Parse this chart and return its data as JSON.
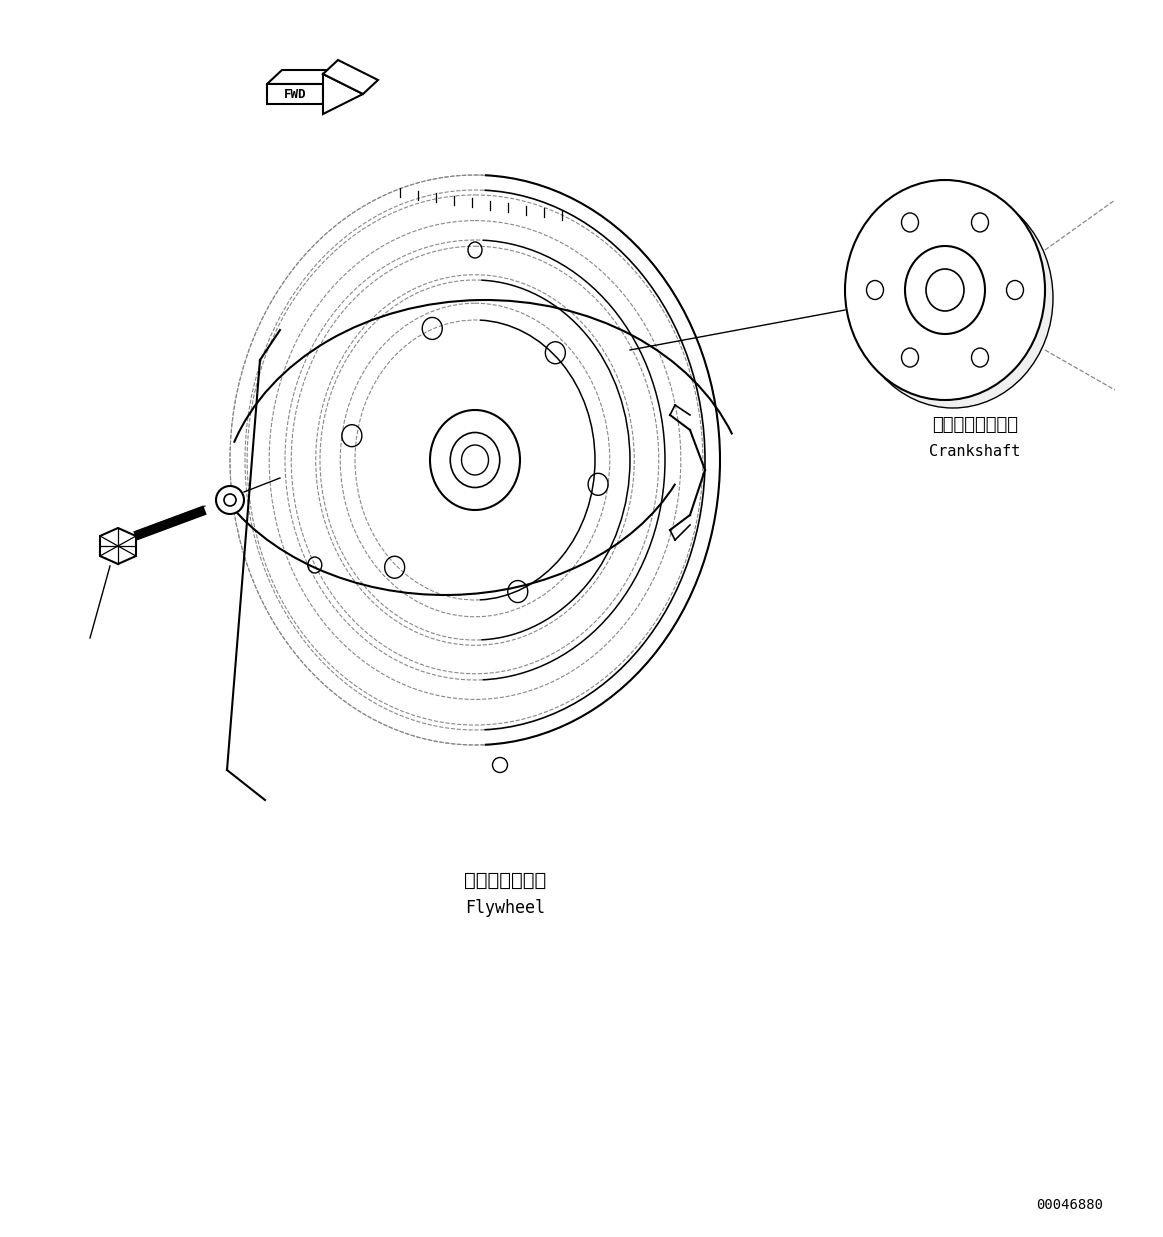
{
  "bg_color": "#ffffff",
  "line_color": "#000000",
  "dashed_color": "#888888",
  "fig_width": 11.63,
  "fig_height": 12.37,
  "dpi": 100,
  "flywheel_label_jp": "フライホイール",
  "flywheel_label_en": "Flywheel",
  "crankshaft_label_jp": "クランクシャフト",
  "crankshaft_label_en": "Crankshaft",
  "part_number": "00046880",
  "fwd_label": "FWD"
}
